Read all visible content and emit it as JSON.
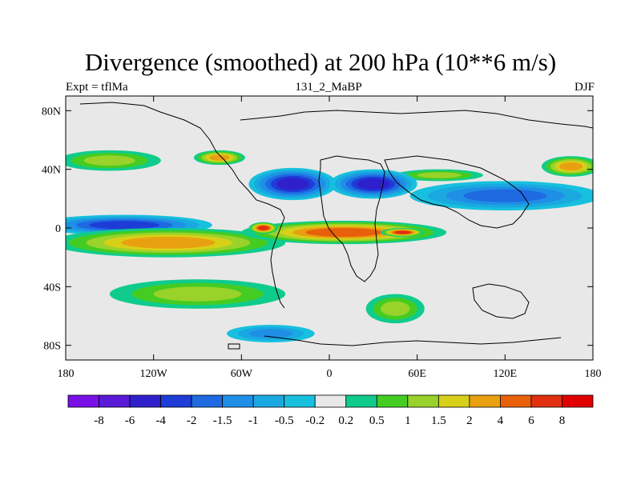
{
  "title": "Divergence (smoothed) at 200 hPa (10**6 m/s)",
  "subtitle_left": "Expt = tflMa",
  "subtitle_center": "131_2_MaBP",
  "subtitle_right": "DJF",
  "chart_data": {
    "type": "heatmap",
    "variable": "Divergence (smoothed)",
    "level": "200 hPa",
    "units": "10**6 m/s",
    "experiment": "tflMa",
    "run": "131_2_MaBP",
    "season": "DJF",
    "xlim": [
      -180,
      180
    ],
    "ylim": [
      -90,
      90
    ],
    "xticks": [
      -180,
      -120,
      -60,
      0,
      60,
      120,
      180
    ],
    "xtick_labels": [
      "180",
      "120W",
      "60W",
      "0",
      "60E",
      "120E",
      "180"
    ],
    "yticks": [
      80,
      40,
      0,
      -40,
      -80
    ],
    "ytick_labels": [
      "80N",
      "40N",
      "0",
      "40S",
      "80S"
    ],
    "colorbar": {
      "levels": [
        "-8",
        "-6",
        "-4",
        "-2",
        "-1.5",
        "-1",
        "-0.5",
        "-0.2",
        "0.2",
        "0.5",
        "1",
        "1.5",
        "2",
        "4",
        "6",
        "8"
      ],
      "colors": [
        "#7a10e8",
        "#5a1ad8",
        "#3020cc",
        "#1e3cd8",
        "#1f6ae0",
        "#1f8ee6",
        "#1aa8e0",
        "#17c0de",
        "#e8e8e8",
        "#10cc8c",
        "#44cc22",
        "#99d22a",
        "#d8d018",
        "#e8a010",
        "#e8600a",
        "#e03010",
        "#e00000"
      ]
    },
    "features": [
      {
        "lon": -140,
        "lat": 2,
        "lon_width": 120,
        "lat_width": 14,
        "value": -2,
        "note": "equatorial convergence, central Pacific"
      },
      {
        "lon": -110,
        "lat": -10,
        "lon_width": 160,
        "lat_width": 20,
        "value": 2,
        "note": "tropical divergence band, eastern Pacific"
      },
      {
        "lon": 10,
        "lat": -3,
        "lon_width": 140,
        "lat_width": 16,
        "value": 4,
        "note": "tropical divergence, Africa to Indian Ocean"
      },
      {
        "lon": -45,
        "lat": 0,
        "lon_width": 20,
        "lat_width": 8,
        "value": 6,
        "note": "divergence maximum over South America"
      },
      {
        "lon": 50,
        "lat": -3,
        "lon_width": 30,
        "lat_width": 6,
        "value": 6,
        "note": "divergence maximum, western Indian Ocean"
      },
      {
        "lon": -25,
        "lat": 30,
        "lon_width": 60,
        "lat_width": 22,
        "value": -4,
        "note": "subtropical convergence, Atlantic"
      },
      {
        "lon": 30,
        "lat": 30,
        "lon_width": 60,
        "lat_width": 20,
        "value": -4,
        "note": "subtropical convergence, Middle East"
      },
      {
        "lon": 120,
        "lat": 22,
        "lon_width": 130,
        "lat_width": 20,
        "value": -1.5,
        "note": "subtropical convergence, western Pacific"
      },
      {
        "lon": -150,
        "lat": 46,
        "lon_width": 70,
        "lat_width": 14,
        "value": 1,
        "note": "midlatitude divergence, North Pacific"
      },
      {
        "lon": 165,
        "lat": 42,
        "lon_width": 40,
        "lat_width": 14,
        "value": 2,
        "note": "midlatitude divergence, NW Pacific"
      },
      {
        "lon": -75,
        "lat": 48,
        "lon_width": 35,
        "lat_width": 10,
        "value": 2,
        "note": "midlatitude divergence, North America"
      },
      {
        "lon": 75,
        "lat": 36,
        "lon_width": 60,
        "lat_width": 8,
        "value": 1,
        "note": "midlatitude divergence, Central Asia"
      },
      {
        "lon": -90,
        "lat": -45,
        "lon_width": 120,
        "lat_width": 20,
        "value": 1,
        "note": "southern midlatitude divergence"
      },
      {
        "lon": 45,
        "lat": -55,
        "lon_width": 40,
        "lat_width": 20,
        "value": 1,
        "note": "southern midlatitude divergence, south Indian Ocean"
      },
      {
        "lon": -40,
        "lat": -72,
        "lon_width": 60,
        "lat_width": 12,
        "value": -1,
        "note": "high-latitude convergence, Southern Ocean"
      }
    ]
  }
}
